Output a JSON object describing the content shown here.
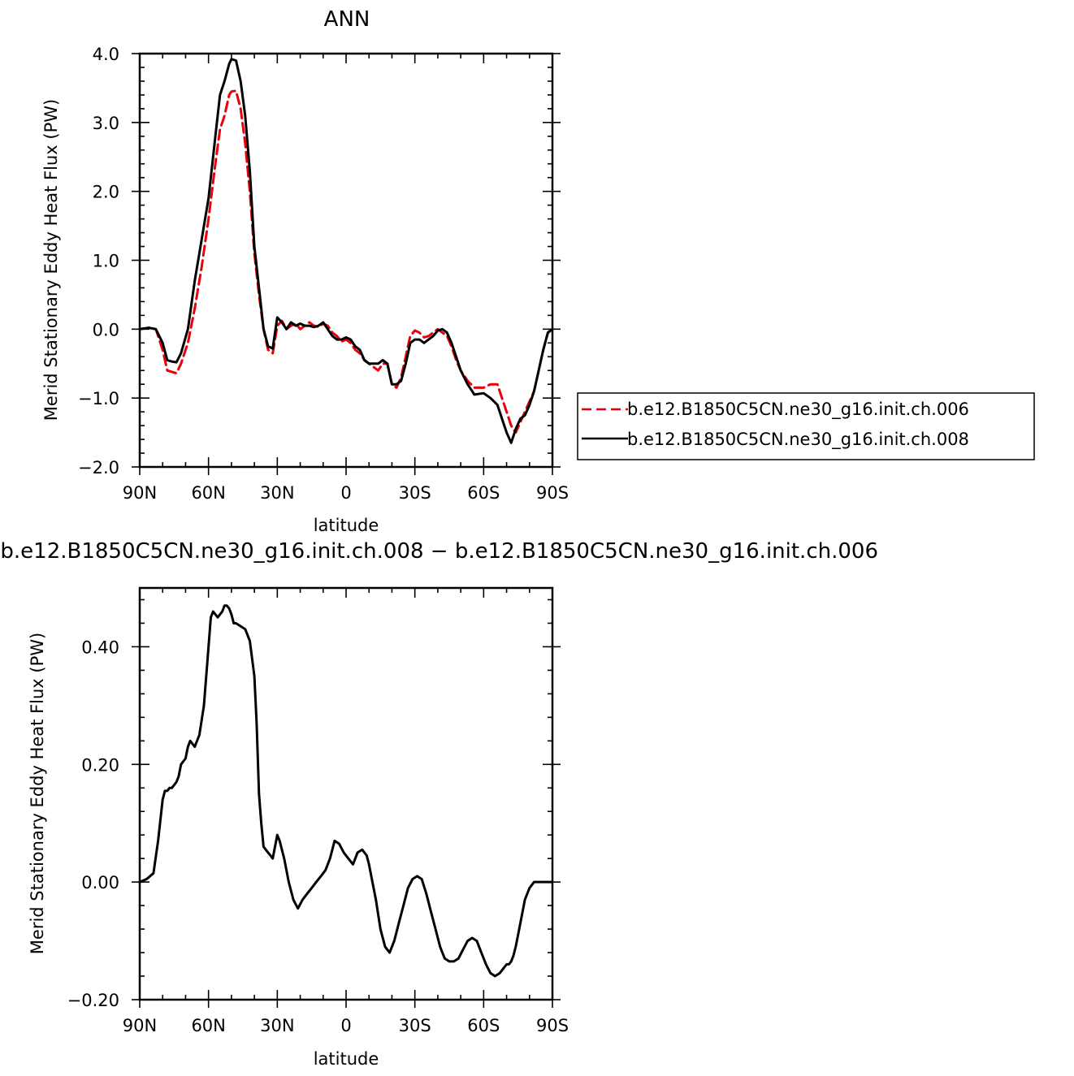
{
  "chart_data": [
    {
      "type": "line",
      "title": "ANN",
      "xlabel": "latitude",
      "ylabel": "Merid Stationary Eddy Heat Flux (PW)",
      "xlim": [
        90,
        -90
      ],
      "ylim": [
        -2.0,
        4.0
      ],
      "x_ticks": [
        90,
        60,
        30,
        0,
        -30,
        -60,
        -90
      ],
      "x_tick_labels": [
        "90N",
        "60N",
        "30N",
        "0",
        "30S",
        "60S",
        "90S"
      ],
      "y_ticks": [
        -2.0,
        -1.0,
        0.0,
        1.0,
        2.0,
        3.0,
        4.0
      ],
      "y_tick_labels": [
        "−2.0",
        "−1.0",
        "0.0",
        "1.0",
        "2.0",
        "3.0",
        "4.0"
      ],
      "legend_position": "right",
      "series": [
        {
          "name": "b.e12.B1850C5CN.ne30_g16.init.ch.006",
          "color": "#e8000b",
          "dash": "dashed",
          "x": [
            90,
            86,
            83,
            80,
            78,
            76,
            74,
            72,
            69,
            66,
            63,
            60,
            57,
            55,
            53,
            51,
            50,
            48,
            46,
            44,
            42,
            40,
            38,
            36,
            34,
            32,
            30,
            28,
            26,
            24,
            22,
            20,
            18,
            16,
            14,
            12,
            10,
            8,
            6,
            4,
            2,
            0,
            -2,
            -4,
            -6,
            -8,
            -10,
            -12,
            -14,
            -16,
            -18,
            -20,
            -22,
            -24,
            -26,
            -28,
            -30,
            -32,
            -34,
            -36,
            -38,
            -40,
            -42,
            -44,
            -46,
            -48,
            -50,
            -53,
            -56,
            -60,
            -63,
            -66,
            -68,
            -70,
            -72,
            -74,
            -76,
            -78,
            -80,
            -82,
            -84,
            -86,
            -88,
            -90
          ],
          "y": [
            0.0,
            0.02,
            0.0,
            -0.3,
            -0.6,
            -0.62,
            -0.64,
            -0.5,
            -0.2,
            0.3,
            0.9,
            1.6,
            2.4,
            2.9,
            3.1,
            3.4,
            3.45,
            3.46,
            3.2,
            2.7,
            2.0,
            1.1,
            0.5,
            0.0,
            -0.3,
            -0.35,
            0.05,
            0.12,
            0.0,
            0.05,
            0.08,
            0.0,
            0.05,
            0.1,
            0.05,
            0.03,
            0.08,
            0.05,
            -0.05,
            -0.1,
            -0.18,
            -0.15,
            -0.2,
            -0.3,
            -0.35,
            -0.45,
            -0.5,
            -0.55,
            -0.6,
            -0.5,
            -0.5,
            -0.8,
            -0.85,
            -0.7,
            -0.4,
            -0.1,
            -0.02,
            -0.05,
            -0.12,
            -0.1,
            -0.05,
            0.0,
            -0.05,
            -0.1,
            -0.25,
            -0.45,
            -0.6,
            -0.75,
            -0.85,
            -0.85,
            -0.8,
            -0.8,
            -1.0,
            -1.2,
            -1.4,
            -1.5,
            -1.35,
            -1.2,
            -1.05,
            -0.9,
            -0.6,
            -0.3,
            -0.05,
            0.0
          ]
        },
        {
          "name": "b.e12.B1850C5CN.ne30_g16.init.ch.008",
          "color": "#000000",
          "dash": "solid",
          "x": [
            90,
            86,
            83,
            80,
            78,
            76,
            74,
            72,
            69,
            66,
            63,
            60,
            57,
            55,
            53,
            51,
            50,
            48,
            46,
            44,
            42,
            40,
            38,
            36,
            34,
            32,
            30,
            28,
            26,
            24,
            22,
            20,
            18,
            16,
            14,
            12,
            10,
            8,
            6,
            4,
            2,
            0,
            -2,
            -4,
            -6,
            -8,
            -10,
            -12,
            -14,
            -16,
            -18,
            -20,
            -22,
            -24,
            -26,
            -28,
            -30,
            -32,
            -34,
            -36,
            -38,
            -40,
            -42,
            -44,
            -46,
            -48,
            -50,
            -53,
            -56,
            -60,
            -63,
            -66,
            -68,
            -70,
            -72,
            -74,
            -76,
            -78,
            -80,
            -82,
            -84,
            -86,
            -88,
            -90
          ],
          "y": [
            0.0,
            0.02,
            0.0,
            -0.2,
            -0.45,
            -0.47,
            -0.48,
            -0.35,
            0.0,
            0.7,
            1.3,
            1.9,
            2.8,
            3.4,
            3.6,
            3.85,
            3.92,
            3.9,
            3.6,
            3.1,
            2.3,
            1.2,
            0.6,
            0.0,
            -0.25,
            -0.28,
            0.17,
            0.1,
            0.0,
            0.1,
            0.05,
            0.08,
            0.05,
            0.05,
            0.03,
            0.05,
            0.1,
            0.0,
            -0.1,
            -0.15,
            -0.15,
            -0.12,
            -0.15,
            -0.25,
            -0.3,
            -0.45,
            -0.5,
            -0.5,
            -0.5,
            -0.45,
            -0.5,
            -0.8,
            -0.8,
            -0.75,
            -0.5,
            -0.2,
            -0.15,
            -0.15,
            -0.2,
            -0.15,
            -0.1,
            -0.02,
            0.0,
            -0.05,
            -0.2,
            -0.4,
            -0.6,
            -0.8,
            -0.95,
            -0.93,
            -1.0,
            -1.1,
            -1.3,
            -1.5,
            -1.65,
            -1.45,
            -1.3,
            -1.25,
            -1.1,
            -0.9,
            -0.6,
            -0.3,
            -0.05,
            0.0
          ]
        }
      ]
    },
    {
      "type": "line",
      "title": "b.e12.B1850C5CN.ne30_g16.init.ch.008 − b.e12.B1850C5CN.ne30_g16.init.ch.006",
      "xlabel": "latitude",
      "ylabel": "Merid Stationary Eddy Heat Flux (PW)",
      "xlim": [
        90,
        -90
      ],
      "ylim": [
        -0.2,
        0.5
      ],
      "x_ticks": [
        90,
        60,
        30,
        0,
        -30,
        -60,
        -90
      ],
      "x_tick_labels": [
        "90N",
        "60N",
        "30N",
        "0",
        "30S",
        "60S",
        "90S"
      ],
      "y_ticks": [
        -0.2,
        0.0,
        0.2,
        0.4
      ],
      "y_tick_labels": [
        "−0.20",
        "0.00",
        "0.20",
        "0.40"
      ],
      "series": [
        {
          "color": "#000000",
          "dash": "solid",
          "x": [
            90,
            87,
            84,
            82,
            80,
            79,
            78,
            77,
            76,
            74,
            73,
            72,
            70,
            69,
            68,
            66,
            64,
            62,
            60,
            59,
            58,
            57,
            56,
            55,
            54,
            53,
            52,
            51,
            50,
            49,
            48,
            46,
            44,
            42,
            40,
            39,
            38,
            37,
            36,
            35,
            34,
            33,
            32,
            30,
            29,
            27,
            25,
            23,
            21,
            19,
            17,
            15,
            13,
            11,
            9,
            7,
            5,
            3,
            1,
            -1,
            -3,
            -5,
            -7,
            -9,
            -10,
            -11,
            -13,
            -15,
            -17,
            -19,
            -21,
            -23,
            -25,
            -27,
            -29,
            -31,
            -33,
            -35,
            -37,
            -39,
            -41,
            -43,
            -45,
            -47,
            -49,
            -51,
            -53,
            -55,
            -57,
            -59,
            -61,
            -63,
            -65,
            -67,
            -69,
            -70,
            -71,
            -72,
            -73,
            -74,
            -75,
            -76,
            -77,
            -78,
            -79,
            -80,
            -81,
            -82,
            -83,
            -84,
            -85,
            -86,
            -87,
            -88,
            -89,
            -90
          ],
          "y": [
            0.0,
            0.005,
            0.015,
            0.07,
            0.14,
            0.155,
            0.155,
            0.16,
            0.16,
            0.17,
            0.18,
            0.2,
            0.21,
            0.23,
            0.24,
            0.23,
            0.25,
            0.3,
            0.4,
            0.45,
            0.46,
            0.455,
            0.45,
            0.455,
            0.46,
            0.47,
            0.47,
            0.465,
            0.455,
            0.44,
            0.44,
            0.435,
            0.43,
            0.41,
            0.35,
            0.27,
            0.15,
            0.1,
            0.06,
            0.055,
            0.05,
            0.045,
            0.04,
            0.08,
            0.07,
            0.04,
            0.0,
            -0.03,
            -0.045,
            -0.03,
            -0.02,
            -0.01,
            0.0,
            0.01,
            0.02,
            0.04,
            0.07,
            0.065,
            0.05,
            0.04,
            0.03,
            0.05,
            0.055,
            0.045,
            0.03,
            0.01,
            -0.03,
            -0.08,
            -0.11,
            -0.12,
            -0.1,
            -0.07,
            -0.04,
            -0.01,
            0.005,
            0.01,
            0.005,
            -0.02,
            -0.05,
            -0.08,
            -0.11,
            -0.13,
            -0.135,
            -0.135,
            -0.13,
            -0.115,
            -0.1,
            -0.095,
            -0.1,
            -0.12,
            -0.14,
            -0.155,
            -0.16,
            -0.155,
            -0.145,
            -0.14,
            -0.14,
            -0.135,
            -0.125,
            -0.11,
            -0.09,
            -0.07,
            -0.05,
            -0.03,
            -0.02,
            -0.01,
            -0.005,
            0.0,
            0.0,
            0.0,
            0.0,
            0.0,
            0.0,
            0.0,
            0.0,
            0.0
          ]
        }
      ]
    }
  ]
}
